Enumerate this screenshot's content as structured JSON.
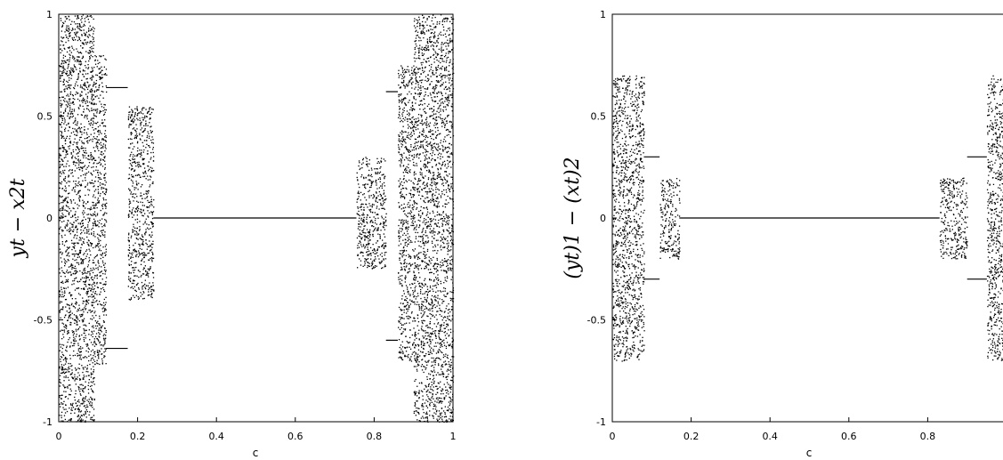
{
  "chart_data": [
    {
      "type": "scatter",
      "xlabel": "c",
      "ylabel": "y_t − x_t^2",
      "xlim": [
        0,
        1
      ],
      "ylim": [
        -1,
        1
      ],
      "xticks": [
        "0",
        "0.2",
        "0.4",
        "0.6",
        "0.8",
        "1"
      ],
      "yticks": [
        "1",
        "0.5",
        "0",
        "-0.5",
        "-1"
      ],
      "grid": false,
      "series": [
        {
          "values": [
            {
              "c_from": 0.0,
              "c_to": 0.09,
              "y_min": -1.0,
              "y_max": 1.0,
              "pattern": "chaotic band"
            },
            {
              "c_from": 0.09,
              "c_to": 0.12,
              "y_min": -0.72,
              "y_max": 0.8,
              "pattern": "chaotic band"
            },
            {
              "c_from": 0.12,
              "c_to": 0.175,
              "y_values": [
                0.64,
                -0.64
              ],
              "pattern": "period-2 branches"
            },
            {
              "c_from": 0.175,
              "c_to": 0.24,
              "y_min": -0.4,
              "y_max": 0.55,
              "pattern": "chaotic band narrowing to 0"
            },
            {
              "c_from": 0.24,
              "c_to": 0.755,
              "y_values": [
                0
              ],
              "pattern": "fixed point"
            },
            {
              "c_from": 0.755,
              "c_to": 0.83,
              "y_min": -0.25,
              "y_max": 0.3,
              "pattern": "chaotic band"
            },
            {
              "c_from": 0.83,
              "c_to": 0.86,
              "y_values": [
                0.62,
                -0.6
              ],
              "pattern": "period-2 branches"
            },
            {
              "c_from": 0.86,
              "c_to": 0.9,
              "y_min": -0.7,
              "y_max": 0.75,
              "pattern": "chaotic band"
            },
            {
              "c_from": 0.9,
              "c_to": 1.0,
              "y_min": -1.0,
              "y_max": 1.0,
              "pattern": "chaotic band"
            }
          ]
        }
      ]
    },
    {
      "type": "scatter",
      "xlabel": "c",
      "ylabel": "(y_t)_1 − (x_t)_2",
      "xlim": [
        0,
        1
      ],
      "ylim": [
        -1,
        1
      ],
      "xticks": [
        "0",
        "0.2",
        "0.4",
        "0.6",
        "0.8"
      ],
      "yticks": [
        "1",
        "0.5",
        "0",
        "-0.5",
        "-1"
      ],
      "grid": false,
      "series": [
        {
          "values": [
            {
              "c_from": 0.0,
              "c_to": 0.08,
              "y_min": -0.7,
              "y_max": 0.7,
              "pattern": "chaotic band"
            },
            {
              "c_from": 0.08,
              "c_to": 0.12,
              "y_values": [
                0.3,
                -0.3
              ],
              "pattern": "period-2 branches"
            },
            {
              "c_from": 0.12,
              "c_to": 0.17,
              "y_min": -0.2,
              "y_max": 0.2,
              "pattern": "chaotic band"
            },
            {
              "c_from": 0.17,
              "c_to": 0.83,
              "y_values": [
                0
              ],
              "pattern": "fixed point"
            },
            {
              "c_from": 0.83,
              "c_to": 0.9,
              "y_min": -0.2,
              "y_max": 0.2,
              "pattern": "chaotic band"
            },
            {
              "c_from": 0.9,
              "c_to": 0.95,
              "y_values": [
                0.3,
                -0.3
              ],
              "pattern": "period-2 branches"
            },
            {
              "c_from": 0.95,
              "c_to": 1.0,
              "y_min": -0.7,
              "y_max": 0.7,
              "pattern": "chaotic band"
            }
          ]
        }
      ]
    }
  ],
  "figure": {
    "left": {
      "xlabel": "c",
      "ylabel": "yt − x2t",
      "yticks": [
        "1",
        "0.5",
        "0",
        "-0.5",
        "-1"
      ],
      "xticks": [
        "0",
        "0.2",
        "0.4",
        "0.6",
        "0.8",
        "1"
      ]
    },
    "right": {
      "xlabel": "c",
      "ylabel": "(yt)1 − (xt)2",
      "yticks": [
        "1",
        "0.5",
        "0",
        "-0.5",
        "-1"
      ],
      "xticks": [
        "0",
        "0.2",
        "0.4",
        "0.6",
        "0.8"
      ]
    }
  }
}
